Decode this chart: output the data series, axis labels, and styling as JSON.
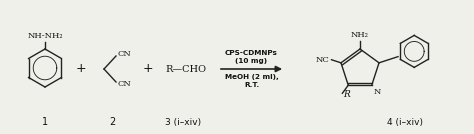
{
  "bg_color": "#f0f0eb",
  "line_color": "#222222",
  "text_color": "#111111",
  "label1": "1",
  "label2": "2",
  "label3": "3 (i–xiv)",
  "label4": "4 (i–xiv)",
  "reagent_line1": "CPS-CDMNPs",
  "reagent_line2": "(10 mg)",
  "reagent_line3": "MeOH (2 ml),",
  "reagent_line4": "R.T.",
  "nh_nh2": "NH-NH₂",
  "cn_top": "CN",
  "cn_bot": "CN",
  "rcho": "R—CHO",
  "nc_label": "NC",
  "nh2_label": "NH₂",
  "r_label": "R",
  "n_label": "N"
}
